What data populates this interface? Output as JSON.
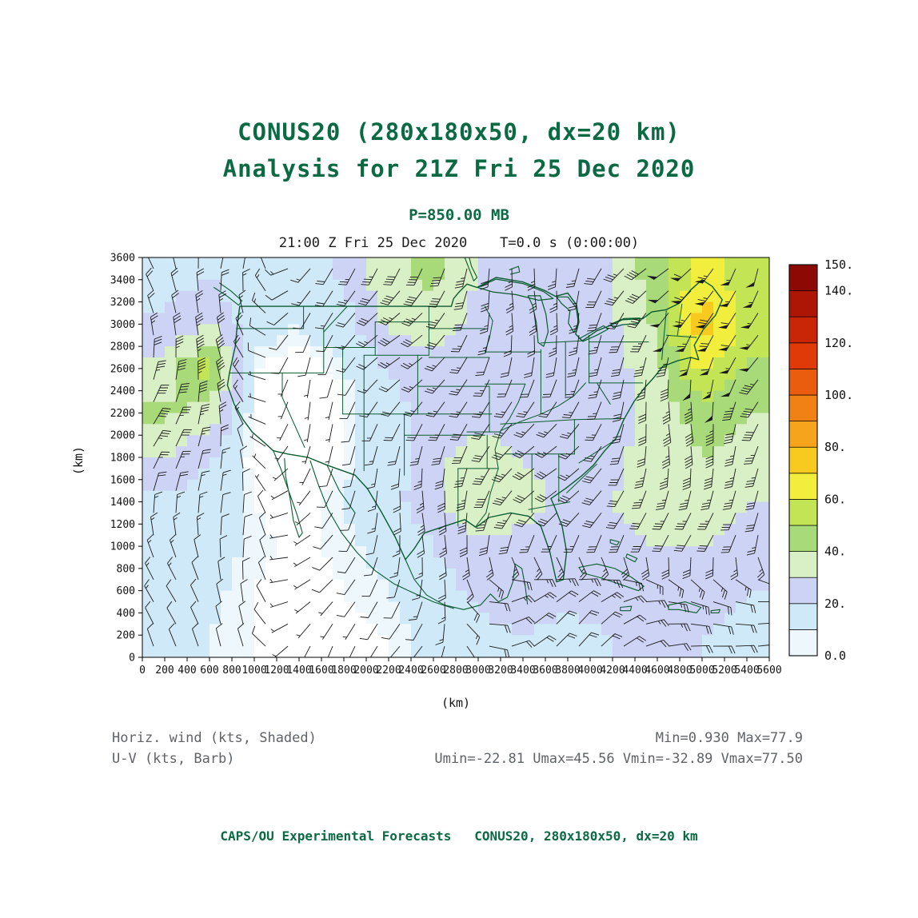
{
  "header": {
    "title_line1": "CONUS20 (280x180x50, dx=20 km)",
    "title_line2": "Analysis for 21Z Fri 25 Dec 2020",
    "level": "P=850.00 MB",
    "valid_time": "21:00 Z Fri 25 Dec 2020    T=0.0 s (0:00:00)"
  },
  "legend": {
    "field_label": "Horiz. wind (kts, Shaded)",
    "barb_label": "U-V (kts, Barb)",
    "stats_line1": "Min=0.930 Max=77.9",
    "stats_line2": "Umin=-22.81 Umax=45.56 Vmin=-32.89 Vmax=77.50"
  },
  "footer": {
    "credit": "CAPS/OU Experimental Forecasts   CONUS20, 280x180x50, dx=20 km"
  },
  "chart_data": {
    "type": "heatmap",
    "title": "CONUS20 (280x180x50, dx=20 km) Analysis for 21Z Fri 25 Dec 2020",
    "field": "Horizontal wind speed (kts, shaded) with U-V wind barbs (kts)",
    "pressure_level": "P=850.00 MB",
    "valid_time": "21:00 Z Fri 25 Dec 2020",
    "forecast_time": "T=0.0 s (0:00:00)",
    "model_grid": "280x180x50, dx=20 km",
    "x_axis": {
      "label": "(km)",
      "min": 0,
      "max": 5600,
      "tick_step": 200
    },
    "y_axis": {
      "label": "(km)",
      "min": 0,
      "max": 3600,
      "tick_step": 200
    },
    "colorbar": {
      "min": 0,
      "max": 150,
      "band_size_kts": 10,
      "tick_values": [
        0,
        20,
        40,
        60,
        80,
        100,
        120,
        140,
        150
      ],
      "tick_labels": [
        "0.0",
        "20.",
        "40.",
        "60.",
        "80.",
        "100.",
        "120.",
        "140.",
        "150."
      ],
      "colors": [
        "#eef8fc",
        "#cfe9f8",
        "#cdd3f4",
        "#d9efc6",
        "#a8da7a",
        "#c3e455",
        "#f1ee3e",
        "#f8ca20",
        "#f6a41c",
        "#f08114",
        "#ea5c0e",
        "#e03a09",
        "#c92507",
        "#ad1505",
        "#8c0a03"
      ]
    },
    "stats": {
      "min": 0.93,
      "max": 77.9,
      "umin": -22.81,
      "umax": 45.56,
      "vmin": -32.89,
      "vmax": 77.5
    },
    "speed_field_coarse": {
      "note": "Estimated wind speed (kts) read from shading on a coarse 14x9 grid; rows ordered north to south, columns west to east; values below ~8 kts are unshaded (white).",
      "nx": 14,
      "ny": 9,
      "values": [
        [
          16,
          20,
          14,
          12,
          22,
          38,
          42,
          30,
          24,
          26,
          30,
          46,
          66,
          52
        ],
        [
          22,
          30,
          13,
          10,
          15,
          32,
          36,
          26,
          22,
          24,
          28,
          42,
          76,
          58
        ],
        [
          34,
          56,
          8,
          6,
          9,
          20,
          26,
          22,
          20,
          22,
          26,
          36,
          62,
          48
        ],
        [
          42,
          36,
          6,
          5,
          7,
          16,
          24,
          26,
          24,
          22,
          26,
          32,
          46,
          40
        ],
        [
          30,
          20,
          6,
          5,
          8,
          15,
          26,
          36,
          30,
          26,
          28,
          34,
          40,
          34
        ],
        [
          18,
          14,
          8,
          6,
          10,
          16,
          28,
          40,
          34,
          28,
          30,
          34,
          36,
          30
        ],
        [
          14,
          12,
          9,
          7,
          9,
          12,
          20,
          28,
          26,
          24,
          28,
          30,
          30,
          26
        ],
        [
          13,
          11,
          8,
          6,
          8,
          10,
          15,
          22,
          24,
          22,
          24,
          26,
          24,
          20
        ],
        [
          12,
          10,
          8,
          6,
          6,
          8,
          12,
          18,
          20,
          18,
          20,
          22,
          20,
          18
        ]
      ]
    }
  },
  "colors": {
    "title": "#0b6a43",
    "map_outline": "#0a5c30",
    "stats_text": "#5f6368",
    "axis_text": "#111111",
    "background": "#ffffff"
  }
}
